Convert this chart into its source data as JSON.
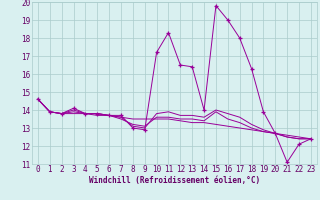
{
  "xlabel": "Windchill (Refroidissement éolien,°C)",
  "x_values": [
    0,
    1,
    2,
    3,
    4,
    5,
    6,
    7,
    8,
    9,
    10,
    11,
    12,
    13,
    14,
    15,
    16,
    17,
    18,
    19,
    20,
    21,
    22,
    23
  ],
  "y_series": [
    [
      14.6,
      13.9,
      13.8,
      14.1,
      13.8,
      13.8,
      13.7,
      13.7,
      13.0,
      12.9,
      17.2,
      18.3,
      16.5,
      16.4,
      14.0,
      19.8,
      19.0,
      18.0,
      16.3,
      13.9,
      12.7,
      11.1,
      12.1,
      12.4
    ],
    [
      14.6,
      13.9,
      13.8,
      13.8,
      13.8,
      13.7,
      13.7,
      13.6,
      13.5,
      13.5,
      13.5,
      13.5,
      13.4,
      13.3,
      13.3,
      13.2,
      13.1,
      13.0,
      12.9,
      12.8,
      12.7,
      12.6,
      12.5,
      12.4
    ],
    [
      14.6,
      13.9,
      13.8,
      13.9,
      13.8,
      13.8,
      13.7,
      13.5,
      13.2,
      13.1,
      13.6,
      13.6,
      13.5,
      13.5,
      13.4,
      13.9,
      13.5,
      13.3,
      13.0,
      12.8,
      12.7,
      12.5,
      12.4,
      12.4
    ],
    [
      14.6,
      13.9,
      13.8,
      14.0,
      13.8,
      13.8,
      13.7,
      13.6,
      13.1,
      13.0,
      13.8,
      13.9,
      13.7,
      13.7,
      13.6,
      14.0,
      13.8,
      13.6,
      13.2,
      12.9,
      12.7,
      12.5,
      12.4,
      12.4
    ]
  ],
  "line_color": "#990099",
  "marker": "+",
  "bg_color": "#d9f0f0",
  "grid_color": "#aacccc",
  "text_color": "#660066",
  "ylim": [
    11,
    20
  ],
  "xlim_min": -0.5,
  "xlim_max": 23.5,
  "yticks": [
    11,
    12,
    13,
    14,
    15,
    16,
    17,
    18,
    19,
    20
  ],
  "xticks": [
    0,
    1,
    2,
    3,
    4,
    5,
    6,
    7,
    8,
    9,
    10,
    11,
    12,
    13,
    14,
    15,
    16,
    17,
    18,
    19,
    20,
    21,
    22,
    23
  ],
  "tick_fontsize": 5.5,
  "xlabel_fontsize": 5.5
}
